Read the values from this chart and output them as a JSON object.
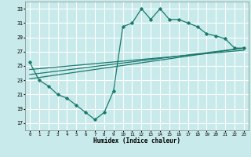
{
  "xlabel": "Humidex (Indice chaleur)",
  "background_color": "#c8eaea",
  "grid_color": "#ffffff",
  "line_color": "#1a7a6e",
  "xlim": [
    -0.5,
    23.5
  ],
  "ylim": [
    16,
    34
  ],
  "yticks": [
    17,
    19,
    21,
    23,
    25,
    27,
    29,
    31,
    33
  ],
  "xticks": [
    0,
    1,
    2,
    3,
    4,
    5,
    6,
    7,
    8,
    9,
    10,
    11,
    12,
    13,
    14,
    15,
    16,
    17,
    18,
    19,
    20,
    21,
    22,
    23
  ],
  "curve_x": [
    0,
    1,
    2,
    3,
    4,
    5,
    6,
    7,
    8,
    9,
    10,
    11,
    12,
    13,
    14,
    15,
    16,
    17,
    18,
    19,
    20,
    21,
    22,
    23
  ],
  "curve_y": [
    25.5,
    23.0,
    22.2,
    21.0,
    20.5,
    19.5,
    18.5,
    17.5,
    18.5,
    21.5,
    30.5,
    31.0,
    33.0,
    31.5,
    33.0,
    31.5,
    31.5,
    31.0,
    30.5,
    29.5,
    29.2,
    28.8,
    27.5,
    27.5
  ],
  "line1_x": [
    0,
    23
  ],
  "line1_y": [
    23.2,
    27.5
  ],
  "line2_x": [
    0,
    23
  ],
  "line2_y": [
    23.8,
    27.5
  ],
  "line3_x": [
    0,
    23
  ],
  "line3_y": [
    24.5,
    27.2
  ]
}
